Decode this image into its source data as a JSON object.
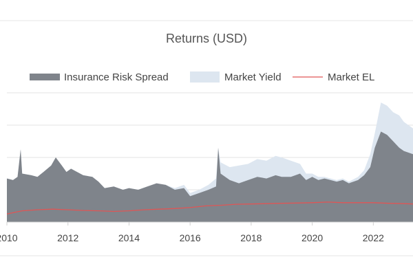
{
  "chart_data": {
    "type": "area",
    "title": "Returns (USD)",
    "xlabel": "",
    "ylabel": "",
    "x_ticks": [
      "2010",
      "2012",
      "2014",
      "2016",
      "2018",
      "2020",
      "2022"
    ],
    "x_range": [
      2010,
      2023.3
    ],
    "y_range": [
      0,
      4
    ],
    "y_grid_values": [
      1,
      2,
      3,
      4
    ],
    "grid": true,
    "legend_position": "top",
    "series": [
      {
        "name": "Insurance Risk Spread",
        "style": "area",
        "color": "#7f848b",
        "points": [
          [
            2010.0,
            1.35
          ],
          [
            2010.2,
            1.3
          ],
          [
            2010.35,
            1.4
          ],
          [
            2010.45,
            2.25
          ],
          [
            2010.5,
            1.5
          ],
          [
            2010.8,
            1.45
          ],
          [
            2011.0,
            1.4
          ],
          [
            2011.2,
            1.55
          ],
          [
            2011.45,
            1.75
          ],
          [
            2011.6,
            2.0
          ],
          [
            2011.8,
            1.75
          ],
          [
            2011.95,
            1.55
          ],
          [
            2012.1,
            1.65
          ],
          [
            2012.3,
            1.55
          ],
          [
            2012.5,
            1.45
          ],
          [
            2012.8,
            1.4
          ],
          [
            2013.0,
            1.25
          ],
          [
            2013.2,
            1.05
          ],
          [
            2013.5,
            1.1
          ],
          [
            2013.8,
            1.0
          ],
          [
            2014.0,
            1.05
          ],
          [
            2014.3,
            1.0
          ],
          [
            2014.6,
            1.1
          ],
          [
            2014.9,
            1.2
          ],
          [
            2015.2,
            1.15
          ],
          [
            2015.5,
            1.0
          ],
          [
            2015.8,
            1.05
          ],
          [
            2016.0,
            0.8
          ],
          [
            2016.3,
            0.9
          ],
          [
            2016.6,
            1.0
          ],
          [
            2016.85,
            1.1
          ],
          [
            2016.92,
            2.3
          ],
          [
            2017.0,
            1.5
          ],
          [
            2017.3,
            1.3
          ],
          [
            2017.6,
            1.2
          ],
          [
            2017.9,
            1.3
          ],
          [
            2018.2,
            1.4
          ],
          [
            2018.5,
            1.35
          ],
          [
            2018.8,
            1.45
          ],
          [
            2019.0,
            1.4
          ],
          [
            2019.3,
            1.4
          ],
          [
            2019.6,
            1.5
          ],
          [
            2019.8,
            1.3
          ],
          [
            2020.0,
            1.4
          ],
          [
            2020.2,
            1.3
          ],
          [
            2020.4,
            1.35
          ],
          [
            2020.6,
            1.3
          ],
          [
            2020.8,
            1.25
          ],
          [
            2021.0,
            1.3
          ],
          [
            2021.2,
            1.2
          ],
          [
            2021.5,
            1.3
          ],
          [
            2021.7,
            1.45
          ],
          [
            2021.9,
            1.7
          ],
          [
            2022.05,
            2.3
          ],
          [
            2022.25,
            2.8
          ],
          [
            2022.45,
            2.7
          ],
          [
            2022.65,
            2.5
          ],
          [
            2022.85,
            2.3
          ],
          [
            2023.0,
            2.2
          ],
          [
            2023.3,
            2.1
          ]
        ]
      },
      {
        "name": "Market Yield",
        "style": "area",
        "color": "#dde6f0",
        "points": [
          [
            2010.0,
            1.35
          ],
          [
            2010.2,
            1.3
          ],
          [
            2010.35,
            1.4
          ],
          [
            2010.45,
            2.25
          ],
          [
            2010.5,
            1.5
          ],
          [
            2010.8,
            1.45
          ],
          [
            2011.0,
            1.4
          ],
          [
            2011.2,
            1.55
          ],
          [
            2011.45,
            1.75
          ],
          [
            2011.6,
            2.0
          ],
          [
            2011.8,
            1.75
          ],
          [
            2011.95,
            1.55
          ],
          [
            2012.1,
            1.65
          ],
          [
            2012.3,
            1.55
          ],
          [
            2012.5,
            1.45
          ],
          [
            2012.8,
            1.4
          ],
          [
            2013.0,
            1.25
          ],
          [
            2013.2,
            1.05
          ],
          [
            2013.5,
            1.1
          ],
          [
            2013.8,
            1.0
          ],
          [
            2014.0,
            1.05
          ],
          [
            2014.3,
            1.0
          ],
          [
            2014.6,
            1.1
          ],
          [
            2014.9,
            1.2
          ],
          [
            2015.2,
            1.15
          ],
          [
            2015.5,
            1.05
          ],
          [
            2015.8,
            1.15
          ],
          [
            2016.0,
            0.9
          ],
          [
            2016.3,
            1.0
          ],
          [
            2016.6,
            1.15
          ],
          [
            2016.85,
            1.35
          ],
          [
            2016.92,
            2.3
          ],
          [
            2017.0,
            1.85
          ],
          [
            2017.3,
            1.7
          ],
          [
            2017.6,
            1.75
          ],
          [
            2017.9,
            1.8
          ],
          [
            2018.2,
            1.95
          ],
          [
            2018.5,
            1.9
          ],
          [
            2018.8,
            2.05
          ],
          [
            2019.0,
            2.0
          ],
          [
            2019.3,
            1.9
          ],
          [
            2019.6,
            1.8
          ],
          [
            2019.8,
            1.5
          ],
          [
            2020.0,
            1.5
          ],
          [
            2020.2,
            1.4
          ],
          [
            2020.4,
            1.4
          ],
          [
            2020.6,
            1.35
          ],
          [
            2020.8,
            1.3
          ],
          [
            2021.0,
            1.35
          ],
          [
            2021.2,
            1.25
          ],
          [
            2021.5,
            1.4
          ],
          [
            2021.7,
            1.6
          ],
          [
            2021.9,
            2.1
          ],
          [
            2022.05,
            2.75
          ],
          [
            2022.25,
            3.7
          ],
          [
            2022.45,
            3.6
          ],
          [
            2022.65,
            3.4
          ],
          [
            2022.85,
            3.3
          ],
          [
            2023.0,
            3.1
          ],
          [
            2023.3,
            2.9
          ]
        ]
      },
      {
        "name": "Market EL",
        "style": "line",
        "color": "#e05555",
        "points": [
          [
            2010.0,
            0.25
          ],
          [
            2010.5,
            0.35
          ],
          [
            2011.0,
            0.38
          ],
          [
            2011.5,
            0.4
          ],
          [
            2012.0,
            0.38
          ],
          [
            2012.5,
            0.36
          ],
          [
            2013.0,
            0.35
          ],
          [
            2013.5,
            0.33
          ],
          [
            2014.0,
            0.35
          ],
          [
            2014.5,
            0.38
          ],
          [
            2015.0,
            0.4
          ],
          [
            2015.5,
            0.42
          ],
          [
            2016.0,
            0.45
          ],
          [
            2016.5,
            0.5
          ],
          [
            2017.0,
            0.52
          ],
          [
            2017.5,
            0.55
          ],
          [
            2018.0,
            0.56
          ],
          [
            2018.5,
            0.57
          ],
          [
            2019.0,
            0.58
          ],
          [
            2019.5,
            0.59
          ],
          [
            2020.0,
            0.6
          ],
          [
            2020.5,
            0.62
          ],
          [
            2021.0,
            0.6
          ],
          [
            2021.5,
            0.6
          ],
          [
            2022.0,
            0.6
          ],
          [
            2022.5,
            0.58
          ],
          [
            2023.0,
            0.57
          ],
          [
            2023.3,
            0.56
          ]
        ]
      }
    ]
  }
}
